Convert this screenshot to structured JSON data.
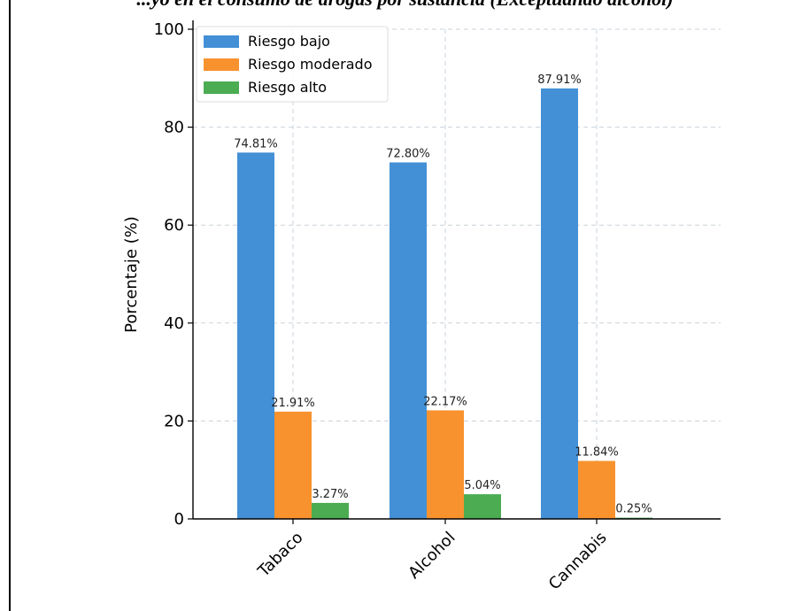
{
  "caption": "...yo en el consumo de drogas por sustancia (Exceptuando alcohol)",
  "chart_data": {
    "type": "bar",
    "categories": [
      "Tabaco",
      "Alcohol",
      "Cannabis"
    ],
    "series": [
      {
        "name": "Riesgo bajo",
        "color": "#4390d6",
        "values": [
          74.81,
          72.8,
          87.91
        ],
        "labels": [
          "74.81%",
          "72.80%",
          "87.91%"
        ]
      },
      {
        "name": "Riesgo moderado",
        "color": "#f8922e",
        "values": [
          21.91,
          22.17,
          11.84
        ],
        "labels": [
          "21.91%",
          "22.17%",
          "11.84%"
        ]
      },
      {
        "name": "Riesgo alto",
        "color": "#4bac52",
        "values": [
          3.27,
          5.04,
          0.25
        ],
        "labels": [
          "3.27%",
          "5.04%",
          "0.25%"
        ]
      }
    ],
    "ylabel": "Porcentaje (%)",
    "xlabel": "",
    "ylim": [
      0,
      100
    ],
    "yticks": [
      "0",
      "20",
      "40",
      "60",
      "80",
      "100"
    ],
    "grid": true,
    "legend_position": "top-left"
  }
}
